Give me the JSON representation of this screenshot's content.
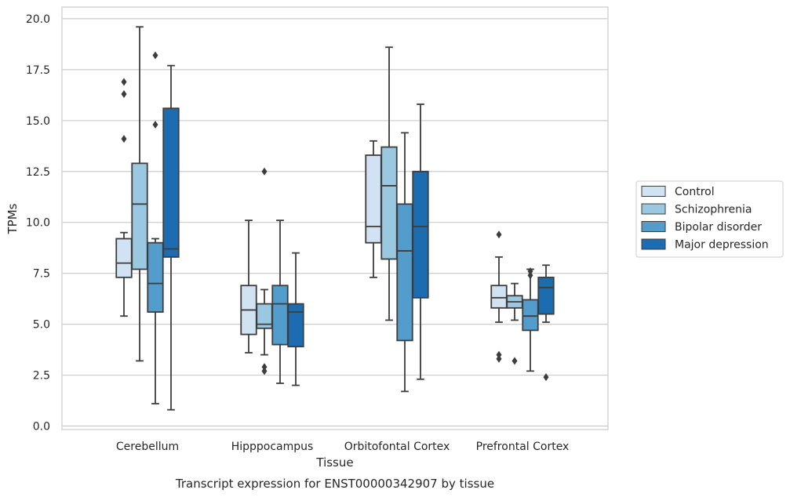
{
  "chart_data": {
    "type": "box",
    "title": "",
    "caption": "Transcript expression for ENST00000342907 by tissue",
    "xlabel": "Tissue",
    "ylabel": "TPMs",
    "ylim": [
      -0.2,
      20.6
    ],
    "yticks": [
      0.0,
      2.5,
      5.0,
      7.5,
      10.0,
      12.5,
      15.0,
      17.5,
      20.0
    ],
    "ytick_labels": [
      "0.0",
      "2.5",
      "5.0",
      "7.5",
      "10.0",
      "12.5",
      "15.0",
      "17.5",
      "20.0"
    ],
    "categories": [
      "Cerebellum",
      "Hipppocampus",
      "Orbitofontal Cortex",
      "Prefrontal Cortex"
    ],
    "grid": "horizontal",
    "legend_position": "right",
    "series": [
      {
        "name": "Control",
        "color": "#d1e2f2",
        "boxes": [
          {
            "whisker_low": 5.4,
            "q1": 7.3,
            "median": 8.0,
            "q3": 9.2,
            "whisker_high": 9.5,
            "outliers": [
              14.1,
              16.3,
              16.9
            ]
          },
          {
            "whisker_low": 3.6,
            "q1": 4.5,
            "median": 5.7,
            "q3": 6.9,
            "whisker_high": 10.1,
            "outliers": []
          },
          {
            "whisker_low": 7.3,
            "q1": 9.0,
            "median": 9.8,
            "q3": 13.3,
            "whisker_high": 14.0,
            "outliers": []
          },
          {
            "whisker_low": 5.1,
            "q1": 5.8,
            "median": 6.3,
            "q3": 6.9,
            "whisker_high": 8.3,
            "outliers": [
              3.3,
              3.5,
              9.4
            ]
          }
        ]
      },
      {
        "name": "Schizophrenia",
        "color": "#9ac8e0",
        "boxes": [
          {
            "whisker_low": 3.2,
            "q1": 7.7,
            "median": 10.9,
            "q3": 12.9,
            "whisker_high": 19.6,
            "outliers": []
          },
          {
            "whisker_low": 3.5,
            "q1": 4.8,
            "median": 5.0,
            "q3": 6.0,
            "whisker_high": 6.7,
            "outliers": [
              2.7,
              2.9,
              12.5
            ]
          },
          {
            "whisker_low": 5.2,
            "q1": 8.2,
            "median": 11.8,
            "q3": 13.7,
            "whisker_high": 18.6,
            "outliers": []
          },
          {
            "whisker_low": 5.2,
            "q1": 5.8,
            "median": 6.1,
            "q3": 6.4,
            "whisker_high": 7.0,
            "outliers": [
              3.2
            ]
          }
        ]
      },
      {
        "name": "Bipolar disorder",
        "color": "#529dcc",
        "boxes": [
          {
            "whisker_low": 1.1,
            "q1": 5.6,
            "median": 7.0,
            "q3": 9.0,
            "whisker_high": 9.2,
            "outliers": [
              14.8,
              18.2
            ]
          },
          {
            "whisker_low": 2.1,
            "q1": 4.0,
            "median": 6.0,
            "q3": 6.9,
            "whisker_high": 10.1,
            "outliers": []
          },
          {
            "whisker_low": 1.7,
            "q1": 4.2,
            "median": 8.6,
            "q3": 10.9,
            "whisker_high": 14.4,
            "outliers": []
          },
          {
            "whisker_low": 2.7,
            "q1": 4.7,
            "median": 5.4,
            "q3": 6.2,
            "whisker_high": 7.7,
            "outliers": [
              7.4,
              7.6
            ]
          }
        ]
      },
      {
        "name": "Major depression",
        "color": "#1c6cb1",
        "boxes": [
          {
            "whisker_low": 0.8,
            "q1": 8.3,
            "median": 8.7,
            "q3": 15.6,
            "whisker_high": 17.7,
            "outliers": []
          },
          {
            "whisker_low": 2.0,
            "q1": 3.9,
            "median": 5.6,
            "q3": 6.0,
            "whisker_high": 8.5,
            "outliers": []
          },
          {
            "whisker_low": 2.3,
            "q1": 6.3,
            "median": 9.8,
            "q3": 12.5,
            "whisker_high": 15.8,
            "outliers": []
          },
          {
            "whisker_low": 5.1,
            "q1": 5.5,
            "median": 6.8,
            "q3": 7.3,
            "whisker_high": 7.9,
            "outliers": [
              2.4
            ]
          }
        ]
      }
    ]
  }
}
